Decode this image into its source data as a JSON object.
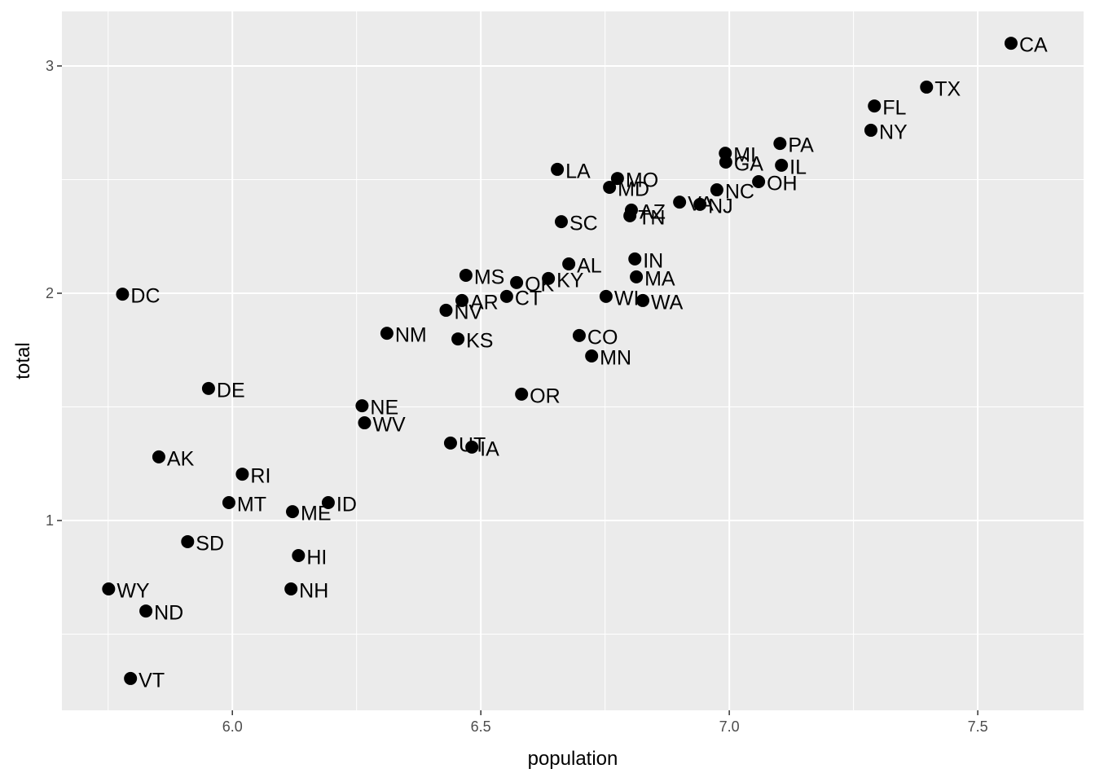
{
  "chart_data": {
    "type": "scatter",
    "x_label": "population",
    "y_label": "total",
    "labels": [
      "CA",
      "TX",
      "FL",
      "NY",
      "PA",
      "MI",
      "GA",
      "IL",
      "OH",
      "NC",
      "NJ",
      "VA",
      "LA",
      "MO",
      "MD",
      "AZ",
      "TN",
      "SC",
      "IN",
      "AL",
      "MA",
      "KY",
      "OK",
      "MS",
      "AR",
      "CT",
      "WI",
      "WA",
      "NV",
      "DC",
      "NM",
      "KS",
      "CO",
      "MN",
      "DE",
      "OR",
      "NE",
      "WV",
      "UT",
      "IA",
      "AK",
      "RI",
      "MT",
      "ID",
      "ME",
      "SD",
      "HI",
      "WY",
      "NH",
      "ND",
      "VT"
    ],
    "x": [
      7.567,
      7.397,
      7.292,
      7.285,
      7.102,
      6.992,
      6.993,
      7.105,
      7.059,
      6.975,
      6.941,
      6.9,
      6.654,
      6.775,
      6.759,
      6.803,
      6.8,
      6.662,
      6.81,
      6.677,
      6.813,
      6.636,
      6.572,
      6.47,
      6.462,
      6.552,
      6.752,
      6.826,
      6.43,
      5.779,
      6.311,
      6.454,
      6.698,
      6.723,
      5.952,
      6.582,
      6.261,
      6.266,
      6.439,
      6.482,
      5.852,
      6.02,
      5.993,
      6.193,
      6.121,
      5.91,
      6.133,
      5.751,
      6.118,
      5.826,
      5.795
    ],
    "values": [
      3.1,
      2.907,
      2.824,
      2.717,
      2.659,
      2.616,
      2.577,
      2.563,
      2.491,
      2.455,
      2.391,
      2.401,
      2.545,
      2.505,
      2.466,
      2.366,
      2.341,
      2.315,
      2.151,
      2.129,
      2.072,
      2.065,
      2.047,
      2.079,
      1.968,
      1.986,
      1.986,
      1.968,
      1.925,
      1.996,
      1.824,
      1.799,
      1.814,
      1.724,
      1.581,
      1.556,
      1.505,
      1.43,
      1.341,
      1.323,
      1.28,
      1.204,
      1.079,
      1.079,
      1.039,
      0.907,
      0.846,
      0.699,
      0.699,
      0.602,
      0.305
    ],
    "color": "#000000",
    "xlim": [
      5.657,
      7.713
    ],
    "ylim": [
      0.165,
      3.24
    ],
    "xticks": [
      {
        "value": 6.0,
        "label": "6.0"
      },
      {
        "value": 6.5,
        "label": "6.5"
      },
      {
        "value": 7.0,
        "label": "7.0"
      },
      {
        "value": 7.5,
        "label": "7.5"
      }
    ],
    "yticks": [
      1,
      2,
      3
    ],
    "grid": true,
    "background": "#EBEBEB"
  }
}
